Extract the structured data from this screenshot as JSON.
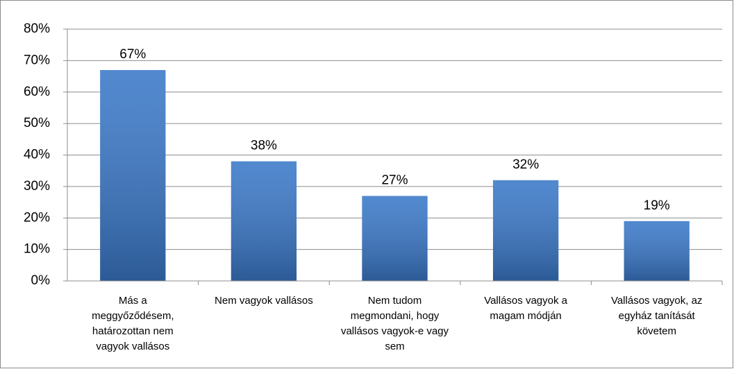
{
  "chart_data": {
    "type": "bar",
    "categories": [
      "Más a meggyőződésem, határozottan nem vagyok vallásos",
      "Nem vagyok vallásos",
      "Nem tudom megmondani, hogy vallásos vagyok-e vagy sem",
      "Vallásos vagyok a magam módján",
      "Vallásos vagyok, az egyház tanítását követem"
    ],
    "values": [
      67,
      38,
      27,
      32,
      19
    ],
    "value_labels": [
      "67%",
      "38%",
      "27%",
      "32%",
      "19%"
    ],
    "color": "#3a78c8",
    "ylim": [
      0,
      80
    ],
    "yticks": [
      {
        "value": 0,
        "label": "0%"
      },
      {
        "value": 10,
        "label": "10%"
      },
      {
        "value": 20,
        "label": "20%"
      },
      {
        "value": 30,
        "label": "30%"
      },
      {
        "value": 40,
        "label": "40%"
      },
      {
        "value": 50,
        "label": "50%"
      },
      {
        "value": 60,
        "label": "60%"
      },
      {
        "value": 70,
        "label": "70%"
      },
      {
        "value": 80,
        "label": "80%"
      }
    ],
    "grid": true
  }
}
